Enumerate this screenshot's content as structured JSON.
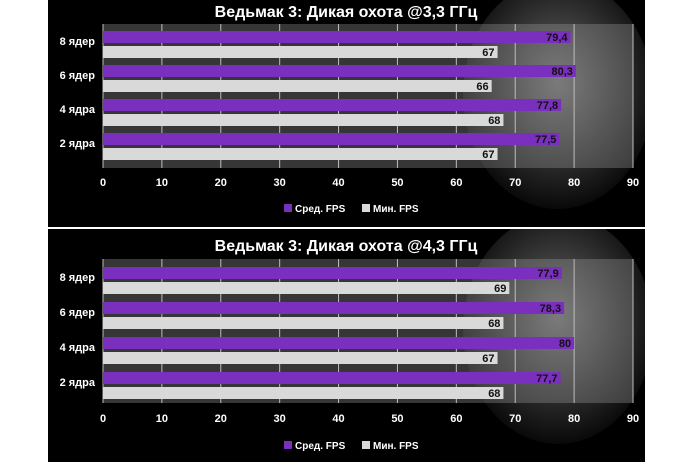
{
  "colors": {
    "avg": "#7b2fbe",
    "min": "#d9d9d9",
    "background": "#000000",
    "plot_overlay": "#9a9a9a"
  },
  "chart_data": [
    {
      "type": "bar",
      "orientation": "horizontal",
      "title": "Ведьмак 3: Дикая охота @3,3 ГГц",
      "categories": [
        "8 ядер",
        "6 ядер",
        "4 ядра",
        "2 ядра"
      ],
      "series": [
        {
          "name": "Сред. FPS",
          "values": [
            79.4,
            80.3,
            77.8,
            77.5
          ],
          "labels": [
            "79,4",
            "80,3",
            "77,8",
            "77,5"
          ]
        },
        {
          "name": "Мин. FPS",
          "values": [
            67,
            66,
            68,
            67
          ],
          "labels": [
            "67",
            "66",
            "68",
            "67"
          ]
        }
      ],
      "xlim": [
        0,
        90
      ],
      "xticks": [
        "0",
        "10",
        "20",
        "30",
        "40",
        "50",
        "60",
        "70",
        "80",
        "90"
      ],
      "legend": "bottom",
      "grid": true
    },
    {
      "type": "bar",
      "orientation": "horizontal",
      "title": "Ведьмак 3: Дикая охота @4,3 ГГц",
      "categories": [
        "8 ядер",
        "6 ядер",
        "4 ядра",
        "2 ядра"
      ],
      "series": [
        {
          "name": "Сред. FPS",
          "values": [
            77.9,
            78.3,
            80,
            77.7
          ],
          "labels": [
            "77,9",
            "78,3",
            "80",
            "77,7"
          ]
        },
        {
          "name": "Мин. FPS",
          "values": [
            69,
            68,
            67,
            68
          ],
          "labels": [
            "69",
            "68",
            "67",
            "68"
          ]
        }
      ],
      "xlim": [
        0,
        90
      ],
      "xticks": [
        "0",
        "10",
        "20",
        "30",
        "40",
        "50",
        "60",
        "70",
        "80",
        "90"
      ],
      "legend": "bottom",
      "grid": true
    }
  ]
}
